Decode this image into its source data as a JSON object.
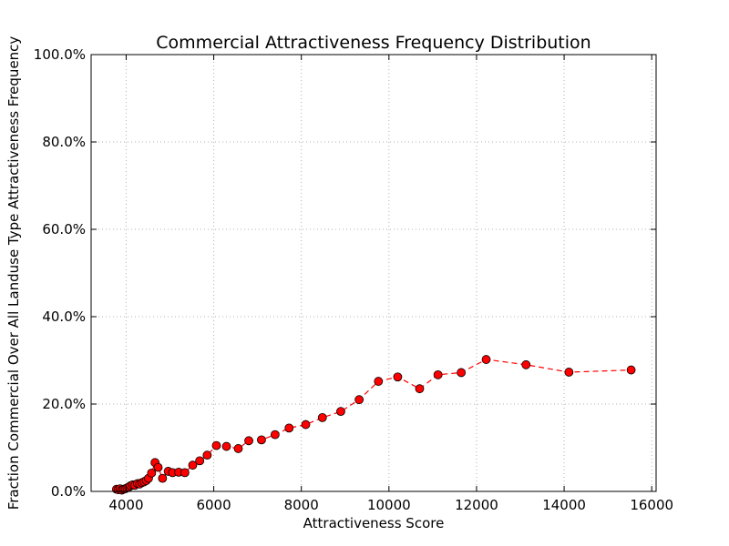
{
  "chart_data": {
    "type": "line",
    "title": "Commercial Attractiveness Frequency Distribution",
    "xlabel": "Attractiveness Score",
    "ylabel": "Fraction Commercial Over All Landuse Type Attractiveness Frequency",
    "xlim": [
      3200,
      16100
    ],
    "ylim": [
      0,
      1
    ],
    "xticks": [
      4000,
      6000,
      8000,
      10000,
      12000,
      14000,
      16000
    ],
    "xtick_labels": [
      "4000",
      "6000",
      "8000",
      "10000",
      "12000",
      "14000",
      "16000"
    ],
    "yticks": [
      0,
      0.2,
      0.4,
      0.6,
      0.8,
      1.0
    ],
    "ytick_labels": [
      "0.0%",
      "20.0%",
      "40.0%",
      "60.0%",
      "80.0%",
      "100.0%"
    ],
    "grid": true,
    "line_style": "dashed",
    "marker": "circle",
    "colors": {
      "series": "#ff0000",
      "marker_edge": "#000000",
      "grid": "#b0b0b0",
      "axis": "#000000"
    },
    "series": [
      {
        "x": [
          3780,
          3820,
          3860,
          3900,
          3940,
          3980,
          4020,
          4060,
          4100,
          4150,
          4200,
          4260,
          4310,
          4360,
          4410,
          4460,
          4510,
          4580,
          4660,
          4730,
          4830,
          4960,
          5060,
          5200,
          5340,
          5520,
          5680,
          5850,
          6060,
          6290,
          6560,
          6800,
          7090,
          7400,
          7720,
          8100,
          8480,
          8900,
          9320,
          9760,
          10200,
          10700,
          11120,
          11650,
          12220,
          13130,
          14110,
          15530
        ],
        "y": [
          0.005,
          0.004,
          0.006,
          0.003,
          0.005,
          0.006,
          0.008,
          0.01,
          0.013,
          0.015,
          0.014,
          0.018,
          0.017,
          0.02,
          0.022,
          0.025,
          0.03,
          0.042,
          0.066,
          0.055,
          0.03,
          0.046,
          0.043,
          0.044,
          0.043,
          0.06,
          0.07,
          0.083,
          0.105,
          0.103,
          0.098,
          0.116,
          0.118,
          0.13,
          0.145,
          0.153,
          0.169,
          0.183,
          0.21,
          0.252,
          0.262,
          0.235,
          0.267,
          0.272,
          0.302,
          0.29,
          0.273,
          0.278
        ]
      }
    ]
  }
}
